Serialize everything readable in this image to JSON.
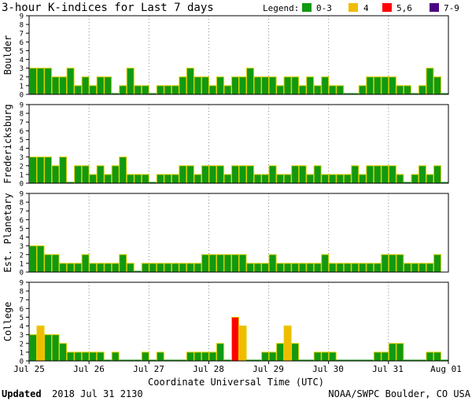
{
  "title": "3-hour K-indices for Last 7 days",
  "legend": {
    "label": "Legend:",
    "items": [
      {
        "label": "0-3",
        "color": "#119911"
      },
      {
        "label": "4",
        "color": "#f0bc00"
      },
      {
        "label": "5,6",
        "color": "#ff0000"
      },
      {
        "label": "7-9",
        "color": "#4b0082"
      }
    ]
  },
  "footer": {
    "updated_label": "Updated",
    "updated_value": "2018 Jul 31 2130",
    "source": "NOAA/SWPC Boulder, CO USA"
  },
  "chart_data": [
    {
      "type": "bar",
      "ylabel": "Boulder",
      "ylim": [
        0,
        9
      ],
      "values": [
        3,
        3,
        3,
        2,
        2,
        3,
        1,
        2,
        1,
        2,
        2,
        0,
        1,
        3,
        1,
        1,
        0,
        1,
        1,
        1,
        2,
        3,
        2,
        2,
        1,
        2,
        1,
        2,
        2,
        3,
        2,
        2,
        2,
        1,
        2,
        2,
        1,
        2,
        1,
        2,
        1,
        1,
        0,
        0,
        1,
        2,
        2,
        2,
        2,
        1,
        1,
        0,
        1,
        3,
        2,
        0
      ]
    },
    {
      "type": "bar",
      "ylabel": "Fredericksburg",
      "ylim": [
        0,
        9
      ],
      "values": [
        3,
        3,
        3,
        2,
        3,
        0,
        2,
        2,
        1,
        2,
        1,
        2,
        3,
        1,
        1,
        1,
        0,
        1,
        1,
        1,
        2,
        2,
        1,
        2,
        2,
        2,
        1,
        2,
        2,
        2,
        1,
        1,
        2,
        1,
        1,
        2,
        2,
        1,
        2,
        1,
        1,
        1,
        1,
        2,
        1,
        2,
        2,
        2,
        2,
        1,
        0,
        1,
        2,
        1,
        2,
        0
      ]
    },
    {
      "type": "bar",
      "ylabel": "Est. Planetary",
      "ylim": [
        0,
        9
      ],
      "values": [
        3,
        3,
        2,
        2,
        1,
        1,
        1,
        2,
        1,
        1,
        1,
        1,
        2,
        1,
        0,
        1,
        1,
        1,
        1,
        1,
        1,
        1,
        1,
        2,
        2,
        2,
        2,
        2,
        2,
        1,
        1,
        1,
        2,
        1,
        1,
        1,
        1,
        1,
        1,
        2,
        1,
        1,
        1,
        1,
        1,
        1,
        1,
        2,
        2,
        2,
        1,
        1,
        1,
        1,
        2,
        null
      ]
    },
    {
      "type": "bar",
      "ylabel": "College",
      "ylim": [
        0,
        9
      ],
      "values": [
        3,
        4,
        3,
        3,
        2,
        1,
        1,
        1,
        1,
        1,
        0,
        1,
        0,
        0,
        0,
        1,
        0,
        1,
        0,
        0,
        0,
        1,
        1,
        1,
        1,
        2,
        0,
        5,
        4,
        0,
        0,
        1,
        1,
        2,
        4,
        2,
        0,
        0,
        1,
        1,
        1,
        0,
        0,
        0,
        0,
        0,
        1,
        1,
        2,
        2,
        0,
        0,
        0,
        1,
        1,
        0
      ]
    }
  ],
  "xaxis": {
    "tick_labels": [
      "Jul 25",
      "Jul 26",
      "Jul 27",
      "Jul 28",
      "Jul 29",
      "Jul 30",
      "Jul 31",
      "Aug 01"
    ],
    "xlabel": "Coordinate Universal Time (UTC)"
  },
  "yaxis": {
    "tick_labels": [
      "0",
      "1",
      "2",
      "3",
      "4",
      "5",
      "6",
      "7",
      "8",
      "9"
    ]
  }
}
